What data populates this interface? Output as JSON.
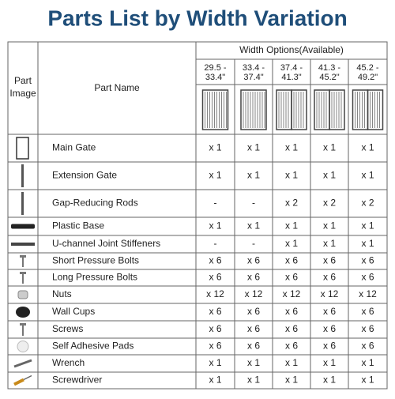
{
  "header": {
    "title": "Parts List by Width Variation"
  },
  "table": {
    "part_image": [
      "Part",
      "Image"
    ],
    "part_name": "Part Name",
    "width_options": "Width Options(Available)",
    "widths": [
      [
        "29.5 -",
        "33.4\""
      ],
      [
        "33.4 -",
        "37.4\""
      ],
      [
        "37.4 -",
        "41.3\""
      ],
      [
        "41.3 -",
        "45.2\""
      ],
      [
        "45.2 -",
        "49.2\""
      ]
    ],
    "rows": [
      {
        "name": "Main Gate",
        "counts": [
          "x 1",
          "x 1",
          "x 1",
          "x 1",
          "x 1"
        ]
      },
      {
        "name": "Extension Gate",
        "counts": [
          "x 1",
          "x 1",
          "x 1",
          "x 1",
          "x 1"
        ]
      },
      {
        "name": "Gap-Reducing Rods",
        "counts": [
          "-",
          "-",
          "x 2",
          "x 2",
          "x 2"
        ]
      },
      {
        "name": "Plastic Base",
        "counts": [
          "x 1",
          "x 1",
          "x 1",
          "x 1",
          "x 1"
        ]
      },
      {
        "name": "U-channel Joint Stiffeners",
        "counts": [
          "-",
          "-",
          "x 1",
          "x 1",
          "x 1"
        ]
      },
      {
        "name": "Short Pressure Bolts",
        "counts": [
          "x 6",
          "x 6",
          "x 6",
          "x 6",
          "x 6"
        ]
      },
      {
        "name": "Long Pressure Bolts",
        "counts": [
          "x 6",
          "x 6",
          "x 6",
          "x 6",
          "x 6"
        ]
      },
      {
        "name": "Nuts",
        "counts": [
          "x 12",
          "x 12",
          "x 12",
          "x 12",
          "x 12"
        ]
      },
      {
        "name": "Wall Cups",
        "counts": [
          "x 6",
          "x 6",
          "x 6",
          "x 6",
          "x 6"
        ]
      },
      {
        "name": "Screws",
        "counts": [
          "x 6",
          "x 6",
          "x 6",
          "x 6",
          "x 6"
        ]
      },
      {
        "name": "Self Adhesive Pads",
        "counts": [
          "x 6",
          "x 6",
          "x 6",
          "x 6",
          "x 6"
        ]
      },
      {
        "name": "Wrench",
        "counts": [
          "x 1",
          "x 1",
          "x 1",
          "x 1",
          "x 1"
        ]
      },
      {
        "name": "Screwdriver",
        "counts": [
          "x 1",
          "x 1",
          "x 1",
          "x 1",
          "x 1"
        ]
      }
    ]
  }
}
